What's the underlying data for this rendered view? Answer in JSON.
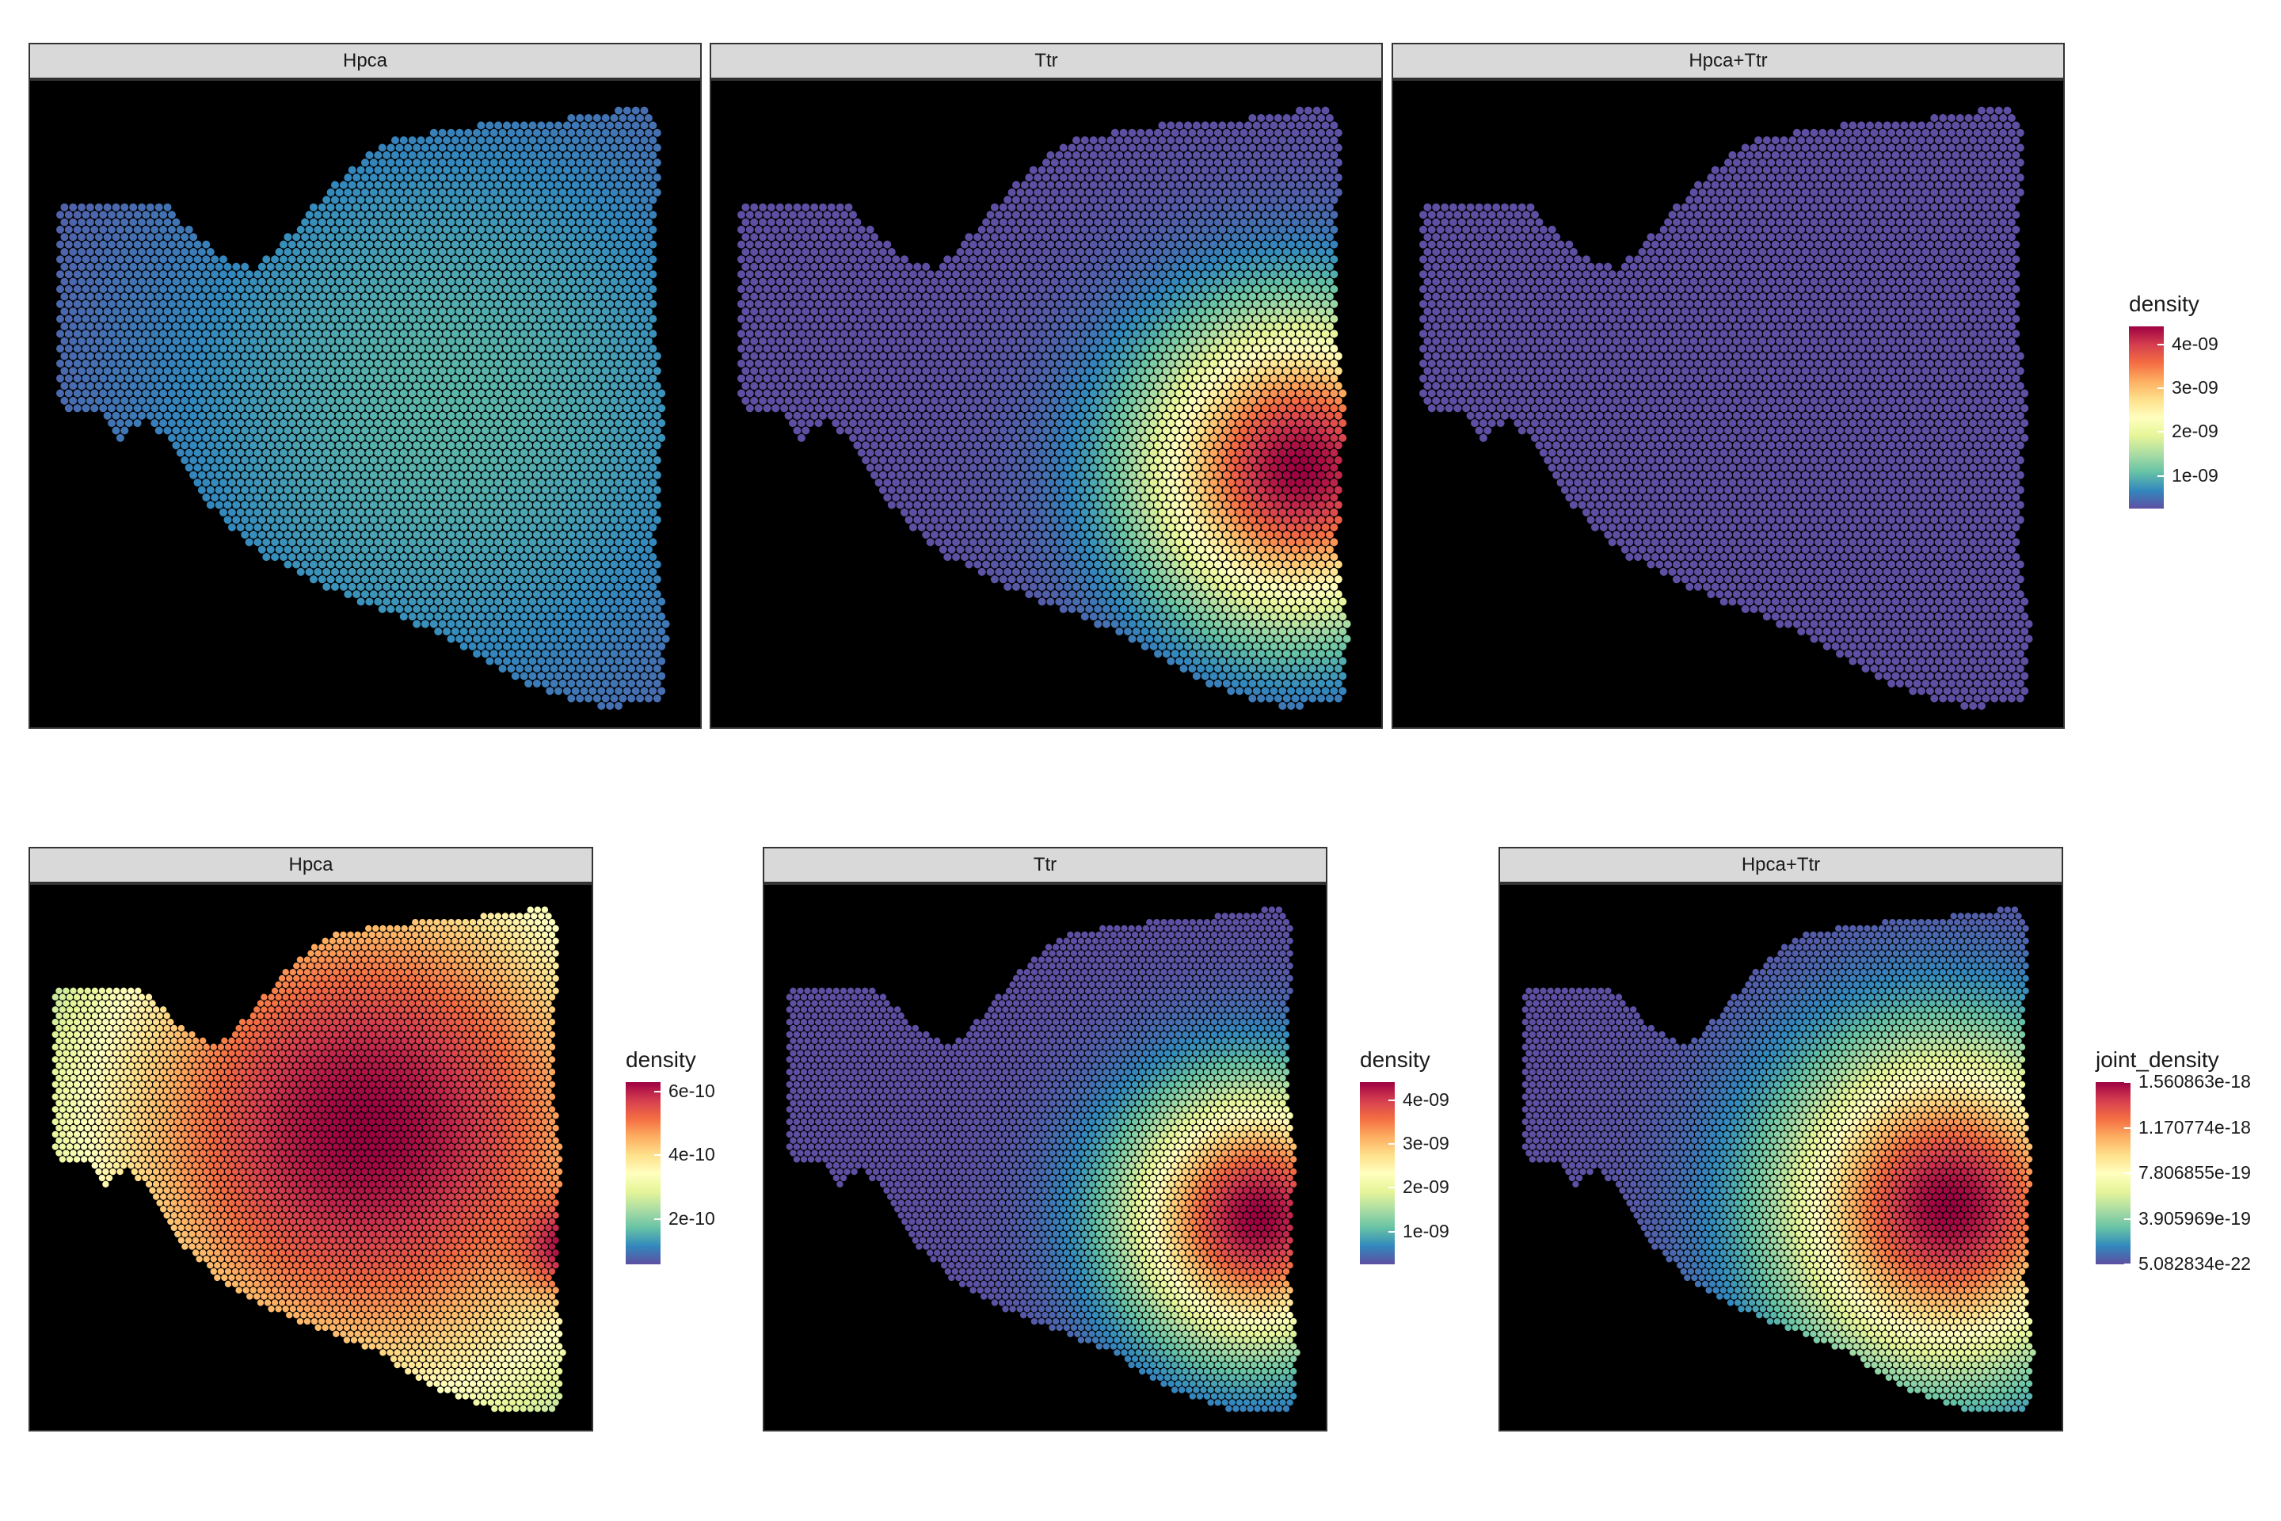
{
  "colors": {
    "panel_background": "#000000",
    "strip_background": "#d9d9d9",
    "scale": [
      "#5e4fa2",
      "#3288bd",
      "#66c2a5",
      "#abdda4",
      "#e6f598",
      "#ffffbf",
      "#fee08b",
      "#fdae61",
      "#f46d43",
      "#d53e4f",
      "#9e0142"
    ]
  },
  "chart_data": [
    {
      "type": "heatmap",
      "facet": "Hpca",
      "row": 1,
      "legend": "shared_top",
      "hotspots": [
        {
          "x": 0.62,
          "y": 0.5,
          "sigma": 0.35,
          "amp": 0.18
        }
      ]
    },
    {
      "type": "heatmap",
      "facet": "Ttr",
      "row": 1,
      "legend": "shared_top",
      "hotspots": [
        {
          "x": 0.88,
          "y": 0.6,
          "sigma": 0.16,
          "amp": 1.0
        }
      ]
    },
    {
      "type": "heatmap",
      "facet": "Hpca+Ttr",
      "row": 1,
      "legend": "shared_top",
      "hotspots": []
    },
    {
      "type": "heatmap",
      "facet": "Hpca",
      "row": 2,
      "legend": "density",
      "hotspots": [
        {
          "x": 0.6,
          "y": 0.45,
          "sigma": 0.42,
          "amp": 1.0
        },
        {
          "x": 0.97,
          "y": 0.67,
          "sigma": 0.06,
          "amp": 0.4
        }
      ]
    },
    {
      "type": "heatmap",
      "facet": "Ttr",
      "row": 2,
      "legend": "density",
      "hotspots": [
        {
          "x": 0.88,
          "y": 0.61,
          "sigma": 0.16,
          "amp": 1.0
        }
      ]
    },
    {
      "type": "heatmap",
      "facet": "Hpca+Ttr",
      "row": 2,
      "legend": "joint_density",
      "hotspots": [
        {
          "x": 0.8,
          "y": 0.59,
          "sigma": 0.2,
          "amp": 1.0
        }
      ]
    }
  ],
  "legends": {
    "shared_top": {
      "title": "density",
      "ticks": [
        "4e-09",
        "3e-09",
        "2e-09",
        "1e-09"
      ],
      "positions": [
        0.9,
        0.66,
        0.42,
        0.18
      ]
    },
    "density": {
      "title": "density",
      "ticks": [
        "6e-10",
        "4e-10",
        "2e-10"
      ],
      "positions": [
        0.95,
        0.6,
        0.25
      ]
    },
    "density_ttr": {
      "title": "density",
      "ticks": [
        "4e-09",
        "3e-09",
        "2e-09",
        "1e-09"
      ],
      "positions": [
        0.9,
        0.66,
        0.42,
        0.18
      ]
    },
    "joint_density": {
      "title": "joint_density",
      "ticks": [
        "1.560863e-18",
        "1.170774e-18",
        "7.806855e-19",
        "3.905969e-19",
        "5.082834e-22"
      ],
      "positions": [
        1.0,
        0.75,
        0.5,
        0.25,
        0.0
      ]
    }
  }
}
